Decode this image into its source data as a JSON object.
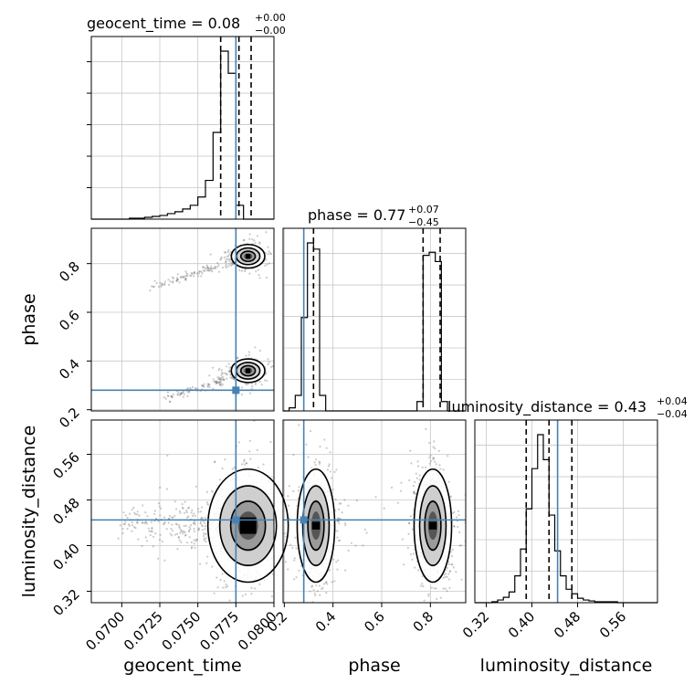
{
  "chart_data": {
    "type": "corner",
    "parameters": [
      "geocent_time",
      "phase",
      "luminosity_distance"
    ],
    "truth_color": "#4682b4",
    "truths": {
      "geocent_time": 0.0775,
      "phase": 0.28,
      "luminosity_distance": 0.445
    },
    "titles": [
      {
        "param": "geocent_time",
        "label": "geocent_time = 0.08",
        "sup": "+0.00",
        "sub": "−0.00"
      },
      {
        "param": "phase",
        "label": "phase = 0.77",
        "sup": "+0.07",
        "sub": "−0.45"
      },
      {
        "param": "luminosity_distance",
        "label": "luminosity_distance = 0.43",
        "sup": "+0.04",
        "sub": "−0.04"
      }
    ],
    "axes": {
      "geocent_time": {
        "range": [
          0.068,
          0.08
        ],
        "ticks": [
          "0.0700",
          "0.0725",
          "0.0750",
          "0.0775",
          "0.0800"
        ],
        "tick_values": [
          0.07,
          0.0725,
          0.075,
          0.0775,
          0.08
        ]
      },
      "phase": {
        "range": [
          0.195,
          0.945
        ],
        "ticks": [
          "0.2",
          "0.4",
          "0.6",
          "0.8"
        ],
        "tick_values": [
          0.2,
          0.4,
          0.6,
          0.8
        ]
      },
      "luminosity_distance": {
        "range": [
          0.3,
          0.62
        ],
        "ticks": [
          "0.32",
          "0.40",
          "0.48",
          "0.56"
        ],
        "tick_values": [
          0.32,
          0.4,
          0.48,
          0.56
        ]
      }
    },
    "quantiles": {
      "geocent_time": [
        0.0765,
        0.0777,
        0.0785
      ],
      "phase": [
        0.32,
        0.77,
        0.84
      ],
      "luminosity_distance": [
        0.39,
        0.43,
        0.47
      ]
    },
    "histograms": {
      "geocent_time": {
        "bin_start": 0.068,
        "bin_width": 0.0005,
        "counts": [
          0,
          0,
          0,
          0,
          0,
          1,
          1,
          2,
          3,
          4,
          6,
          8,
          11,
          15,
          24,
          42,
          94,
          182,
          158,
          15,
          0,
          0,
          0,
          0
        ]
      },
      "phase": {
        "bin_start": 0.195,
        "bin_width": 0.025,
        "counts": [
          0,
          1,
          5,
          30,
          54,
          52,
          5,
          0,
          0,
          0,
          0,
          0,
          0,
          0,
          0,
          0,
          0,
          0,
          0,
          0,
          0,
          0,
          3,
          50,
          51,
          48,
          3,
          0,
          0,
          0
        ]
      },
      "luminosity_distance": {
        "bin_start": 0.3,
        "bin_width": 0.01,
        "counts": [
          0,
          0,
          0,
          1,
          3,
          6,
          12,
          30,
          60,
          105,
          150,
          188,
          160,
          98,
          58,
          30,
          15,
          10,
          5,
          3,
          2,
          1,
          1,
          1,
          1,
          0,
          0,
          0,
          0,
          0,
          0,
          0
        ]
      }
    },
    "pairs": [
      {
        "x": "geocent_time",
        "y": "phase"
      },
      {
        "x": "geocent_time",
        "y": "luminosity_distance"
      },
      {
        "x": "phase",
        "y": "luminosity_distance"
      }
    ],
    "grid": true
  }
}
